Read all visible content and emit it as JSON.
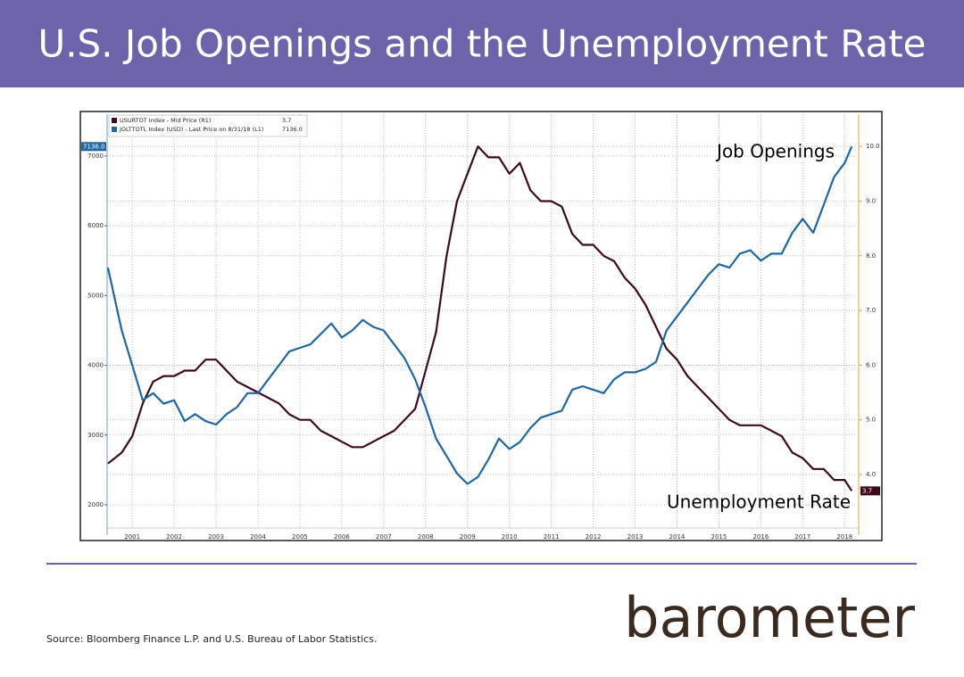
{
  "slide": {
    "title": "U.S. Job Openings and the Unemployment Rate",
    "source": "Source: Bloomberg Finance L.P. and U.S. Bureau of Labor Statistics.",
    "logo": "barometer"
  },
  "chart_data": {
    "type": "line",
    "annotations": [
      "Job Openings",
      "Unemployment Rate"
    ],
    "x": [
      2000.92,
      2001.25,
      2001.5,
      2001.75,
      2002,
      2002.25,
      2002.5,
      2002.75,
      2003,
      2003.25,
      2003.5,
      2003.75,
      2004,
      2004.25,
      2004.5,
      2004.75,
      2005,
      2005.25,
      2005.5,
      2005.75,
      2006,
      2006.25,
      2006.5,
      2006.75,
      2007,
      2007.25,
      2007.5,
      2007.75,
      2008,
      2008.25,
      2008.5,
      2008.75,
      2009,
      2009.25,
      2009.5,
      2009.75,
      2010,
      2010.25,
      2010.5,
      2010.75,
      2011,
      2011.25,
      2011.5,
      2011.75,
      2012,
      2012.25,
      2012.5,
      2012.75,
      2013,
      2013.25,
      2013.5,
      2013.75,
      2014,
      2014.25,
      2014.5,
      2014.75,
      2015,
      2015.25,
      2015.5,
      2015.75,
      2016,
      2016.25,
      2016.5,
      2016.75,
      2017,
      2017.25,
      2017.5,
      2017.75,
      2018,
      2018.25,
      2018.5,
      2018.67
    ],
    "xlim": [
      2000.9,
      2018.75
    ],
    "xticks": [
      {
        "value": 2001.5,
        "label": "2001"
      },
      {
        "value": 2002.5,
        "label": "2002"
      },
      {
        "value": 2003.5,
        "label": "2003"
      },
      {
        "value": 2004.5,
        "label": "2004"
      },
      {
        "value": 2005.5,
        "label": "2005"
      },
      {
        "value": 2006.5,
        "label": "2006"
      },
      {
        "value": 2007.5,
        "label": "2007"
      },
      {
        "value": 2008.5,
        "label": "2008"
      },
      {
        "value": 2009.5,
        "label": "2009"
      },
      {
        "value": 2010.5,
        "label": "2010"
      },
      {
        "value": 2011.5,
        "label": "2011"
      },
      {
        "value": 2012.5,
        "label": "2012"
      },
      {
        "value": 2013.5,
        "label": "2013"
      },
      {
        "value": 2014.5,
        "label": "2014"
      },
      {
        "value": 2015.5,
        "label": "2015"
      },
      {
        "value": 2016.5,
        "label": "2016"
      },
      {
        "value": 2017.5,
        "label": "2017"
      },
      {
        "value": 2018.5,
        "label": "2018"
      }
    ],
    "ylim": [
      1565,
      7600
    ],
    "yticks": [
      2000,
      3000,
      4000,
      5000,
      6000,
      7000
    ],
    "y2lim": [
      2.89,
      10.59
    ],
    "y2ticks": [
      {
        "value": 4,
        "label": "4.0"
      },
      {
        "value": 5,
        "label": "5.0"
      },
      {
        "value": 6,
        "label": "6.0"
      },
      {
        "value": 7,
        "label": "7.0"
      },
      {
        "value": 8,
        "label": "8.0"
      },
      {
        "value": 9,
        "label": "9.0"
      },
      {
        "value": 10,
        "label": "10.0"
      }
    ],
    "grid": true,
    "series": [
      {
        "name": "USURTOT Index - Mid Price (R1)",
        "legend_value": "3.7",
        "last_label": "3.7",
        "color": "#3b0a1f",
        "axis": "y2",
        "values": [
          4.2,
          4.4,
          4.7,
          5.3,
          5.7,
          5.8,
          5.8,
          5.9,
          5.9,
          6.1,
          6.1,
          5.9,
          5.7,
          5.6,
          5.5,
          5.4,
          5.3,
          5.1,
          5.0,
          5.0,
          4.8,
          4.7,
          4.6,
          4.5,
          4.5,
          4.6,
          4.7,
          4.8,
          5.0,
          5.2,
          5.9,
          6.6,
          8.0,
          9.0,
          9.5,
          10.0,
          9.8,
          9.8,
          9.5,
          9.7,
          9.2,
          9.0,
          9.0,
          8.9,
          8.4,
          8.2,
          8.2,
          8.0,
          7.9,
          7.6,
          7.4,
          7.1,
          6.7,
          6.3,
          6.1,
          5.8,
          5.6,
          5.4,
          5.2,
          5.0,
          4.9,
          4.9,
          4.9,
          4.8,
          4.7,
          4.4,
          4.3,
          4.1,
          4.1,
          3.9,
          3.9,
          3.7
        ]
      },
      {
        "name": "JOLTTOTL Index (USD) - Last Price on 8/31/18 (L1)",
        "legend_value": "7136.0",
        "last_label": "7136.0",
        "color": "#1f66a3",
        "axis": "y",
        "values": [
          5400,
          4500,
          4000,
          3500,
          3600,
          3450,
          3500,
          3200,
          3300,
          3200,
          3150,
          3300,
          3400,
          3600,
          3600,
          3800,
          4000,
          4200,
          4250,
          4300,
          4450,
          4600,
          4400,
          4500,
          4650,
          4550,
          4500,
          4300,
          4100,
          3800,
          3400,
          2950,
          2700,
          2450,
          2300,
          2400,
          2650,
          2950,
          2800,
          2900,
          3100,
          3250,
          3300,
          3350,
          3650,
          3700,
          3650,
          3600,
          3800,
          3900,
          3900,
          3950,
          4050,
          4500,
          4700,
          4900,
          5100,
          5300,
          5450,
          5400,
          5600,
          5650,
          5500,
          5600,
          5600,
          5900,
          6100,
          5900,
          6300,
          6700,
          6900,
          7136
        ]
      }
    ]
  }
}
